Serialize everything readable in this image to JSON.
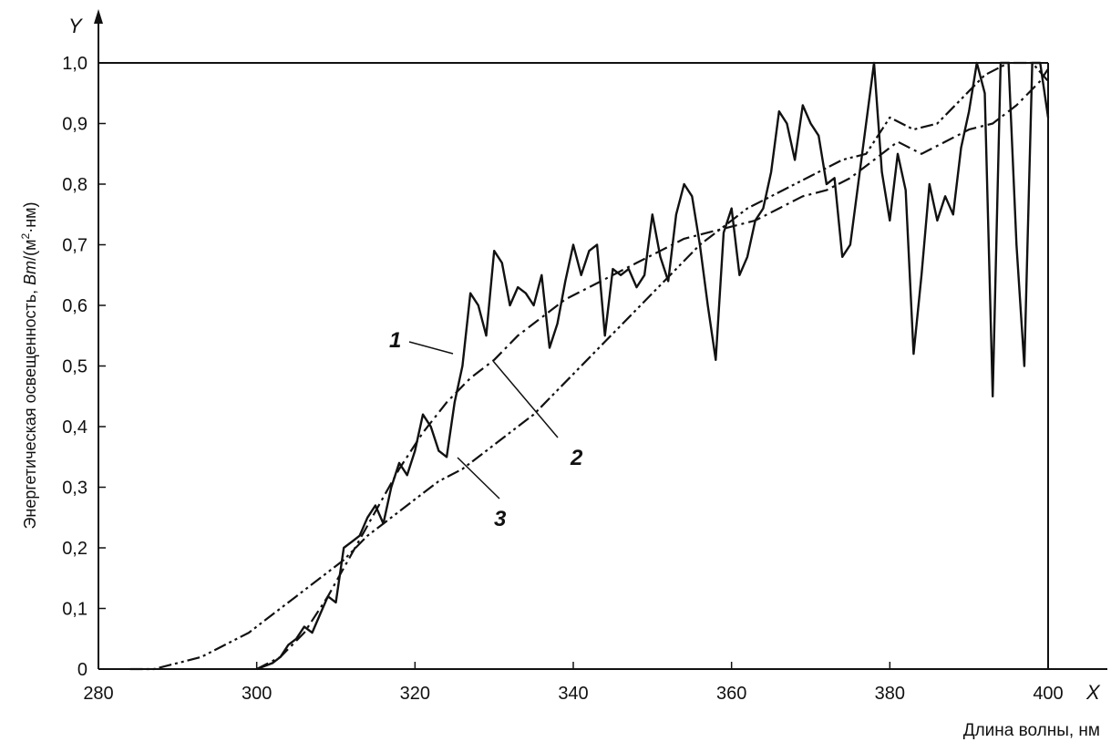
{
  "chart_data": {
    "type": "line",
    "x_axis": {
      "letter": "X",
      "label": "Длина волны, нм",
      "range": [
        280,
        400
      ],
      "ticks": [
        "280",
        "300",
        "320",
        "340",
        "360",
        "380",
        "400"
      ]
    },
    "y_axis": {
      "letter": "Y",
      "label_prefix": "Энергетическая освещенность, ",
      "label_unit": "Вт",
      "label_suffix_1": "/(м",
      "label_sup": "2",
      "label_suffix_2": "·нм)",
      "range": [
        0,
        1.0
      ],
      "ticks": [
        "0",
        "0,1",
        "0,2",
        "0,3",
        "0,4",
        "0,5",
        "0,6",
        "0,7",
        "0,8",
        "0,9",
        "1,0"
      ]
    },
    "grid": false,
    "series": [
      {
        "name": "1",
        "style": "solid",
        "x": [
          300,
          302,
          303,
          304,
          305,
          306,
          307,
          308,
          309,
          310,
          311,
          312,
          313,
          314,
          315,
          316,
          317,
          318,
          319,
          320,
          321,
          322,
          323,
          324,
          325,
          326,
          327,
          328,
          329,
          330,
          331,
          332,
          333,
          334,
          335,
          336,
          337,
          338,
          339,
          340,
          341,
          342,
          343,
          344,
          345,
          346,
          347,
          348,
          349,
          350,
          351,
          352,
          353,
          354,
          355,
          356,
          357,
          358,
          359,
          360,
          361,
          362,
          363,
          364,
          365,
          366,
          367,
          368,
          369,
          370,
          371,
          372,
          373,
          374,
          375,
          376,
          377,
          378,
          379,
          380,
          381,
          382,
          383,
          384,
          385,
          386,
          387,
          388,
          389,
          390,
          391,
          392,
          393,
          394,
          395,
          396,
          397,
          398,
          399,
          400
        ],
        "values": [
          0.0,
          0.01,
          0.02,
          0.04,
          0.05,
          0.07,
          0.06,
          0.09,
          0.12,
          0.11,
          0.2,
          0.21,
          0.22,
          0.25,
          0.27,
          0.24,
          0.3,
          0.34,
          0.32,
          0.36,
          0.42,
          0.4,
          0.36,
          0.35,
          0.44,
          0.5,
          0.62,
          0.6,
          0.55,
          0.69,
          0.67,
          0.6,
          0.63,
          0.62,
          0.6,
          0.65,
          0.53,
          0.57,
          0.64,
          0.7,
          0.65,
          0.69,
          0.7,
          0.55,
          0.66,
          0.65,
          0.66,
          0.63,
          0.65,
          0.75,
          0.68,
          0.64,
          0.75,
          0.8,
          0.78,
          0.7,
          0.6,
          0.51,
          0.72,
          0.76,
          0.65,
          0.68,
          0.74,
          0.76,
          0.82,
          0.92,
          0.9,
          0.84,
          0.93,
          0.9,
          0.88,
          0.8,
          0.81,
          0.68,
          0.7,
          0.8,
          0.9,
          1.0,
          0.82,
          0.74,
          0.85,
          0.79,
          0.52,
          0.65,
          0.8,
          0.74,
          0.78,
          0.75,
          0.86,
          0.92,
          1.0,
          0.95,
          0.45,
          1.0,
          1.0,
          0.7,
          0.5,
          1.0,
          1.0,
          0.91
        ]
      },
      {
        "name": "2",
        "style": "dash-dot",
        "x": [
          300,
          303,
          306,
          309,
          312,
          315,
          318,
          321,
          324,
          327,
          330,
          333,
          336,
          339,
          342,
          345,
          348,
          351,
          354,
          357,
          360,
          363,
          366,
          369,
          372,
          375,
          378,
          381,
          384,
          387,
          390,
          393,
          396,
          399,
          400
        ],
        "values": [
          0.0,
          0.02,
          0.06,
          0.12,
          0.19,
          0.26,
          0.33,
          0.39,
          0.44,
          0.48,
          0.51,
          0.55,
          0.58,
          0.61,
          0.63,
          0.65,
          0.67,
          0.69,
          0.71,
          0.72,
          0.73,
          0.74,
          0.76,
          0.78,
          0.79,
          0.81,
          0.84,
          0.87,
          0.85,
          0.87,
          0.89,
          0.9,
          0.93,
          0.97,
          0.99
        ]
      },
      {
        "name": "3",
        "style": "dash-dot-dot",
        "x": [
          284,
          287,
          290,
          293,
          296,
          299,
          302,
          305,
          308,
          311,
          314,
          317,
          320,
          323,
          326,
          329,
          332,
          335,
          338,
          341,
          344,
          347,
          350,
          353,
          356,
          359,
          362,
          365,
          368,
          371,
          374,
          377,
          380,
          383,
          386,
          389,
          392,
          395,
          398,
          400
        ],
        "values": [
          0.0,
          0.0,
          0.01,
          0.02,
          0.04,
          0.06,
          0.09,
          0.12,
          0.15,
          0.18,
          0.22,
          0.25,
          0.28,
          0.31,
          0.33,
          0.36,
          0.39,
          0.42,
          0.46,
          0.5,
          0.54,
          0.58,
          0.62,
          0.66,
          0.7,
          0.73,
          0.76,
          0.78,
          0.8,
          0.82,
          0.84,
          0.85,
          0.91,
          0.89,
          0.9,
          0.94,
          0.98,
          1.0,
          1.0,
          0.97
        ]
      }
    ],
    "annotations": [
      "1",
      "2",
      "3"
    ]
  }
}
